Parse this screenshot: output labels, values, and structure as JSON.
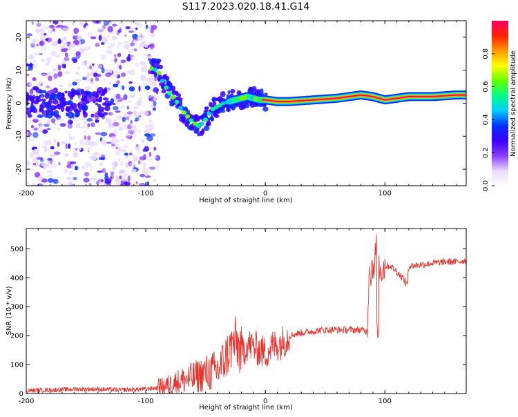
{
  "page": {
    "title": "S117.2023.020.18.41.G14"
  },
  "colorbar": {
    "label": "Normalized spectral amplitude",
    "ticks": [
      "0.0",
      "0.2",
      "0.4",
      "0.6",
      "0.8"
    ],
    "range": [
      0,
      1
    ],
    "colormap": [
      "#ffffff",
      "#e8d8ff",
      "#8a3cff",
      "#3a00ff",
      "#0030ff",
      "#00ccff",
      "#00ff88",
      "#66ff00",
      "#ffff00",
      "#ff9900",
      "#ff2200",
      "#ff0066"
    ]
  },
  "chart_data": [
    {
      "type": "heatmap",
      "title": "",
      "xlabel": "Height of straight line (km)",
      "ylabel": "Frequency (Hz)",
      "xlim": [
        -200,
        168
      ],
      "ylim": [
        -25,
        25
      ],
      "xticks": [
        "-200",
        "-100",
        "0",
        "100"
      ],
      "yticks": [
        "20",
        "10",
        "0",
        "-10",
        "-20"
      ],
      "xtick_values": [
        -200,
        -100,
        0,
        100
      ],
      "ytick_values": [
        20,
        10,
        0,
        -10,
        -20
      ],
      "ridge": {
        "x": [
          -95,
          -90,
          -85,
          -80,
          -75,
          -70,
          -65,
          -60,
          -55,
          -50,
          -45,
          -40,
          -35,
          -30,
          -25,
          -20,
          -15,
          -10,
          -5,
          0,
          10,
          20,
          40,
          60,
          80,
          90,
          100,
          120,
          140,
          160,
          168
        ],
        "freq": [
          10.5,
          10,
          6,
          3,
          1,
          -2,
          -4,
          -6,
          -7,
          -5,
          -2,
          -1,
          0,
          0.5,
          1,
          1.5,
          2,
          1.5,
          1,
          1,
          0.5,
          0.5,
          1,
          1.5,
          2.5,
          2,
          1,
          2,
          2,
          2.5,
          2.5
        ]
      },
      "noise_region": {
        "x_range": [
          -200,
          -90
        ],
        "freq_range": [
          -25,
          25
        ],
        "amplitude": "low"
      },
      "color_scale": "normalized spectral amplitude 0 to 1"
    },
    {
      "type": "line",
      "title": "",
      "xlabel": "Height of straight line (km)",
      "ylabel": "SNR (10 * v/v)",
      "xlim": [
        -200,
        168
      ],
      "ylim": [
        0,
        570
      ],
      "xticks": [
        "-200",
        "-100",
        "0",
        "100"
      ],
      "yticks": [
        "0",
        "100",
        "200",
        "300",
        "400",
        "500"
      ],
      "xtick_values": [
        -200,
        -100,
        0,
        100
      ],
      "ytick_values": [
        0,
        100,
        200,
        300,
        400,
        500
      ],
      "series": [
        {
          "color": "#e8312a",
          "x": [
            -200,
            -180,
            -160,
            -140,
            -120,
            -100,
            -90,
            -80,
            -70,
            -60,
            -50,
            -40,
            -35,
            -30,
            -25,
            -20,
            -15,
            -10,
            -5,
            0,
            5,
            10,
            15,
            20,
            30,
            40,
            50,
            60,
            70,
            80,
            85,
            87,
            88,
            90,
            92,
            93,
            94,
            95,
            96,
            100,
            105,
            110,
            115,
            118,
            120,
            130,
            140,
            150,
            160,
            168
          ],
          "y": [
            10,
            12,
            15,
            15,
            12,
            15,
            20,
            30,
            45,
            55,
            70,
            80,
            110,
            150,
            180,
            140,
            170,
            160,
            150,
            140,
            160,
            170,
            180,
            200,
            210,
            215,
            220,
            220,
            220,
            220,
            215,
            450,
            420,
            440,
            470,
            550,
            500,
            450,
            430,
            440,
            440,
            420,
            400,
            380,
            440,
            445,
            450,
            455,
            455,
            460
          ]
        }
      ]
    }
  ]
}
